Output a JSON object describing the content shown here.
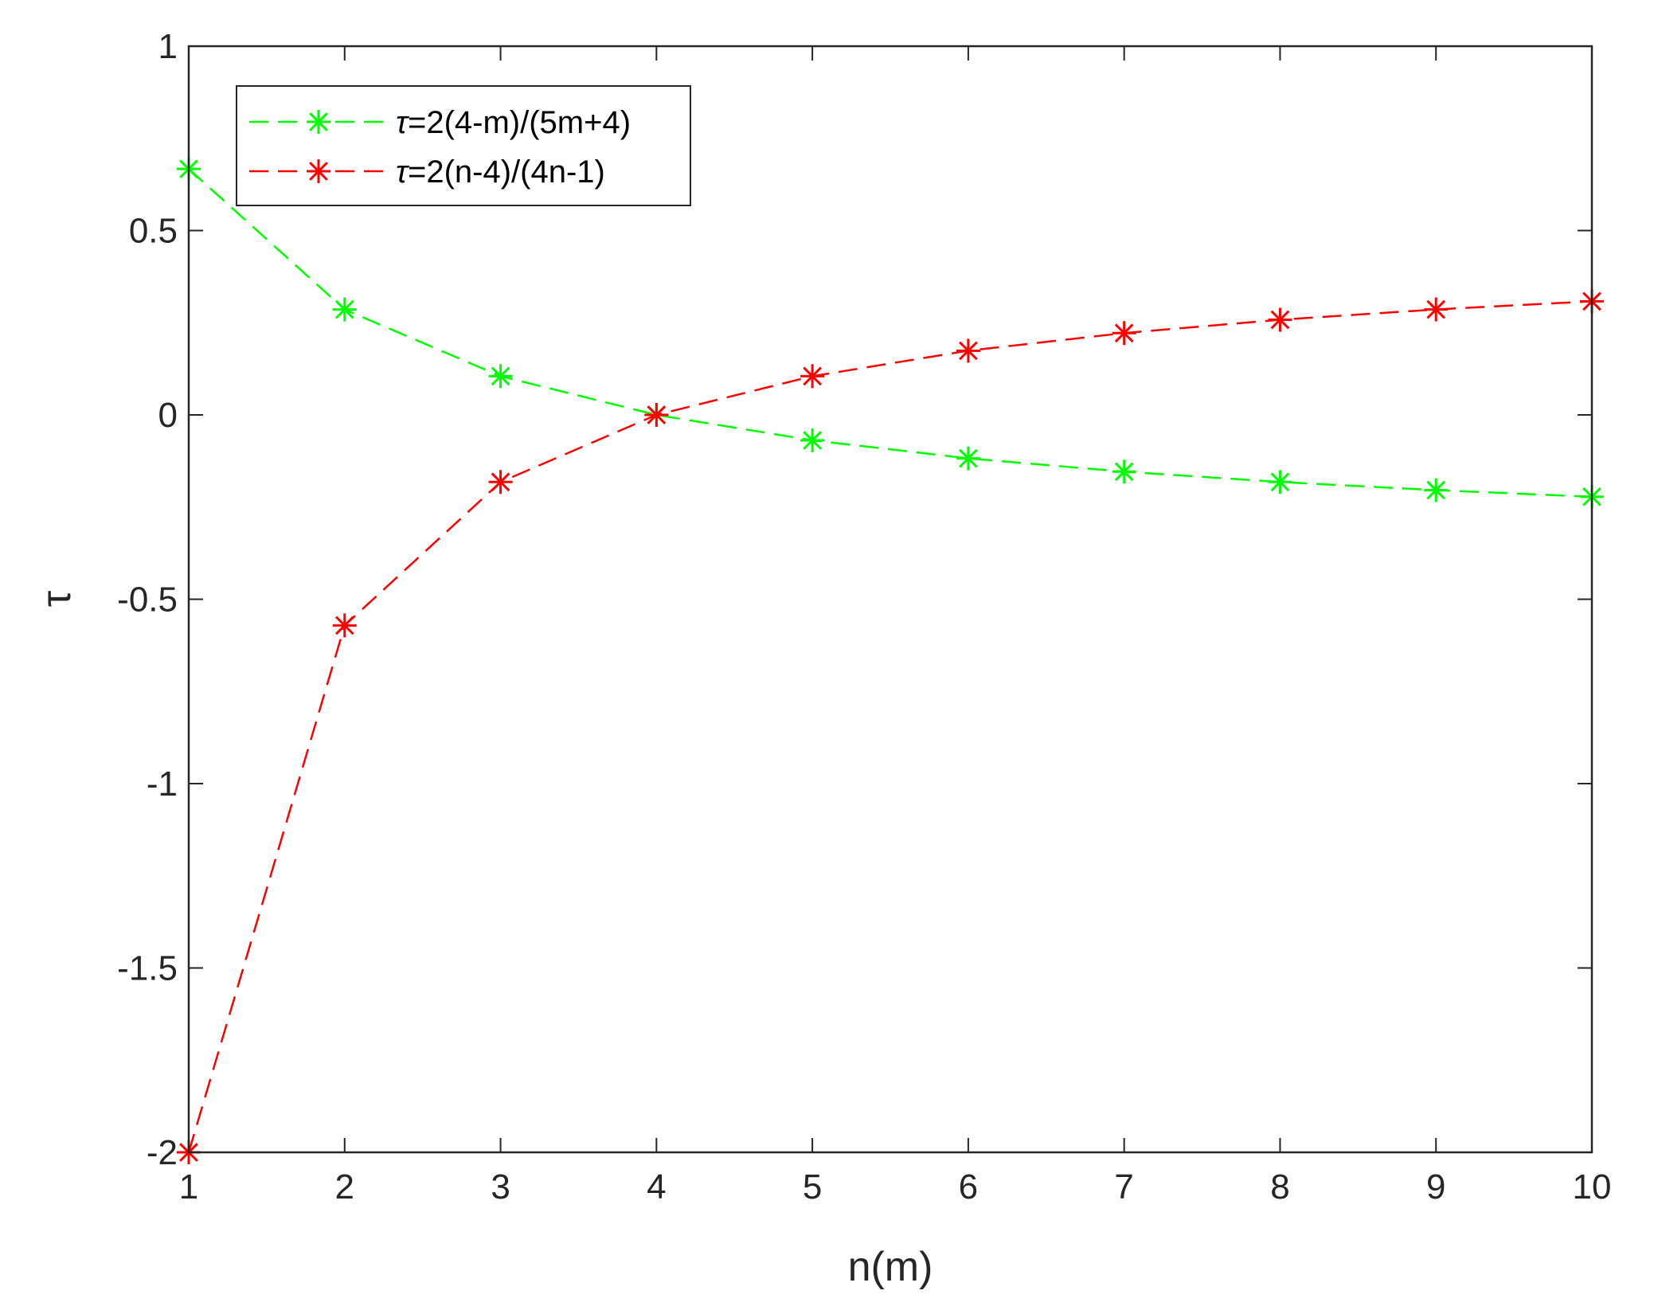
{
  "chart_data": {
    "type": "line",
    "title": "",
    "xlabel": "n(m)",
    "ylabel": "τ",
    "xlim": [
      1,
      10
    ],
    "ylim": [
      -2,
      1
    ],
    "xticks": [
      1,
      2,
      3,
      4,
      5,
      6,
      7,
      8,
      9,
      10
    ],
    "xtick_labels": [
      "1",
      "2",
      "3",
      "4",
      "5",
      "6",
      "7",
      "8",
      "9",
      "10"
    ],
    "yticks": [
      -2,
      -1.5,
      -1,
      -0.5,
      0,
      0.5,
      1
    ],
    "ytick_labels": [
      "-2",
      "-1.5",
      "-1",
      "-0.5",
      "0",
      "0.5",
      "1"
    ],
    "grid": false,
    "legend_position": "top-left",
    "x": [
      1,
      2,
      3,
      4,
      5,
      6,
      7,
      8,
      9,
      10
    ],
    "series": [
      {
        "name": "τ=2(4-m)/(5m+4)",
        "legend_prefix": "τ",
        "legend_suffix": "=2(4-m)/(5m+4)",
        "color": "#00ff00",
        "line_style": "dashed",
        "marker": "asterisk",
        "values": [
          0.667,
          0.286,
          0.105,
          0,
          -0.069,
          -0.118,
          -0.154,
          -0.182,
          -0.204,
          -0.222
        ]
      },
      {
        "name": "τ=2(n-4)/(4n-1)",
        "legend_prefix": "τ",
        "legend_suffix": "=2(n-4)/(4n-1)",
        "color": "#ff0000",
        "line_style": "dashed",
        "marker": "asterisk",
        "values": [
          -2,
          -0.571,
          -0.182,
          0,
          0.105,
          0.174,
          0.222,
          0.258,
          0.286,
          0.308
        ]
      }
    ]
  }
}
